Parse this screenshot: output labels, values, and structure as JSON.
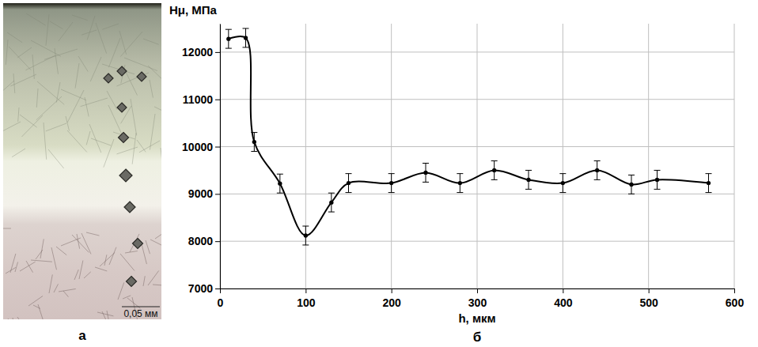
{
  "chart_data": {
    "type": "line",
    "x": [
      10,
      30,
      40,
      70,
      100,
      130,
      150,
      200,
      240,
      280,
      320,
      360,
      400,
      440,
      480,
      510,
      570
    ],
    "values": [
      12280,
      12300,
      10100,
      9220,
      8120,
      8820,
      9230,
      9230,
      9450,
      9230,
      9500,
      9300,
      9230,
      9500,
      9200,
      9300,
      9230
    ],
    "errors": [
      200,
      200,
      200,
      200,
      200,
      200,
      200,
      200,
      200,
      200,
      200,
      200,
      200,
      200,
      200,
      200,
      200
    ],
    "xlim": [
      0,
      600
    ],
    "ylim": [
      7000,
      12600
    ],
    "xticks": [
      0,
      100,
      200,
      300,
      400,
      500,
      600
    ],
    "yticks": [
      7000,
      8000,
      9000,
      10000,
      11000,
      12000
    ],
    "xlabel": "h, мкм",
    "ylabel": "Hμ, МПа",
    "color": "#000000",
    "marker": "circle",
    "line_style": "solid",
    "grid": true,
    "panel_label": "б"
  },
  "image_panel": {
    "label": "а",
    "scale_bar": "0,05 мм"
  }
}
